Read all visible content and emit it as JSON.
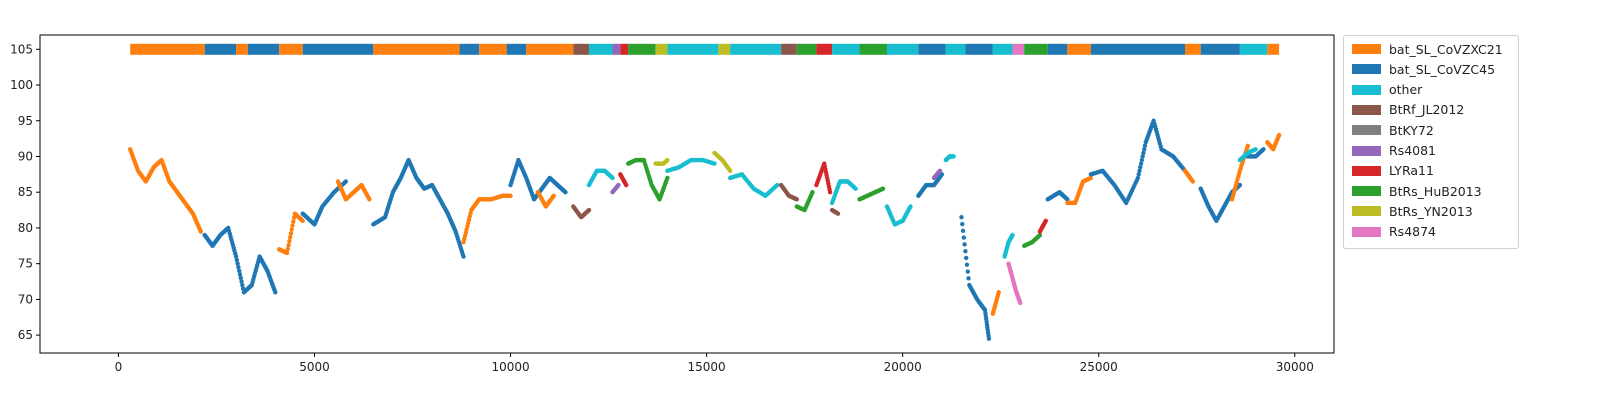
{
  "chart_data": {
    "type": "scatter",
    "title": "",
    "xlabel": "",
    "ylabel": "",
    "xlim": [
      -2000,
      31000
    ],
    "ylim": [
      62.5,
      107
    ],
    "xticks": [
      0,
      5000,
      10000,
      15000,
      20000,
      25000,
      30000
    ],
    "xtick_labels": [
      "0",
      "5000",
      "10000",
      "15000",
      "20000",
      "25000",
      "30000"
    ],
    "yticks": [
      65,
      70,
      75,
      80,
      85,
      90,
      95,
      100,
      105
    ],
    "ytick_labels": [
      "65",
      "70",
      "75",
      "80",
      "85",
      "90",
      "95",
      "100",
      "105"
    ],
    "grid": false,
    "legend_placement": "outside-top-right",
    "colors": {
      "bat_SL_CoVZXC21": "#ff7f0e",
      "bat_SL_CoVZC45": "#1f77b4",
      "other": "#17becf",
      "BtRf_JL2012": "#8c564b",
      "BtKY72": "#7f7f7f",
      "Rs4081": "#9467bd",
      "LYRa11": "#d62728",
      "BtRs_HuB2013": "#2ca02c",
      "BtRs_YN2013": "#bcbd22",
      "Rs4874": "#e377c2"
    },
    "legend": [
      "bat_SL_CoVZXC21",
      "bat_SL_CoVZC45",
      "other",
      "BtRf_JL2012",
      "BtKY72",
      "Rs4081",
      "LYRa11",
      "BtRs_HuB2013",
      "BtRs_YN2013",
      "Rs4874"
    ],
    "band_y": 105,
    "band_segments": [
      [
        300,
        2200,
        "bat_SL_CoVZXC21"
      ],
      [
        2200,
        3000,
        "bat_SL_CoVZC45"
      ],
      [
        3000,
        3300,
        "bat_SL_CoVZXC21"
      ],
      [
        3300,
        4100,
        "bat_SL_CoVZC45"
      ],
      [
        4100,
        4700,
        "bat_SL_CoVZXC21"
      ],
      [
        4700,
        6500,
        "bat_SL_CoVZC45"
      ],
      [
        6500,
        8700,
        "bat_SL_CoVZXC21"
      ],
      [
        8700,
        9200,
        "bat_SL_CoVZC45"
      ],
      [
        9200,
        9900,
        "bat_SL_CoVZXC21"
      ],
      [
        9900,
        10400,
        "bat_SL_CoVZC45"
      ],
      [
        10400,
        11600,
        "bat_SL_CoVZXC21"
      ],
      [
        11600,
        12000,
        "BtRf_JL2012"
      ],
      [
        12000,
        12600,
        "other"
      ],
      [
        12600,
        12800,
        "Rs4081"
      ],
      [
        12800,
        13000,
        "LYRa11"
      ],
      [
        13000,
        13700,
        "BtRs_HuB2013"
      ],
      [
        13700,
        14000,
        "BtRs_YN2013"
      ],
      [
        14000,
        15300,
        "other"
      ],
      [
        15300,
        15600,
        "BtRs_YN2013"
      ],
      [
        15600,
        16900,
        "other"
      ],
      [
        16900,
        17300,
        "BtRf_JL2012"
      ],
      [
        17300,
        17800,
        "BtRs_HuB2013"
      ],
      [
        17800,
        18200,
        "LYRa11"
      ],
      [
        18200,
        18900,
        "other"
      ],
      [
        18900,
        19600,
        "BtRs_HuB2013"
      ],
      [
        19600,
        20400,
        "other"
      ],
      [
        20400,
        21100,
        "bat_SL_CoVZC45"
      ],
      [
        21100,
        21600,
        "other"
      ],
      [
        21600,
        22300,
        "bat_SL_CoVZC45"
      ],
      [
        22300,
        22800,
        "other"
      ],
      [
        22800,
        23100,
        "Rs4874"
      ],
      [
        23100,
        23700,
        "BtRs_HuB2013"
      ],
      [
        23700,
        24200,
        "bat_SL_CoVZC45"
      ],
      [
        24200,
        24800,
        "bat_SL_CoVZXC21"
      ],
      [
        24800,
        27200,
        "bat_SL_CoVZC45"
      ],
      [
        27200,
        27600,
        "bat_SL_CoVZXC21"
      ],
      [
        27600,
        28600,
        "bat_SL_CoVZC45"
      ],
      [
        28600,
        29300,
        "other"
      ],
      [
        29300,
        29600,
        "bat_SL_CoVZXC21"
      ]
    ],
    "series": [
      {
        "name": "bat_SL_CoVZXC21",
        "x": [
          300,
          500,
          700,
          900,
          1100,
          1300,
          1500,
          1700,
          1900,
          2100
        ],
        "y": [
          91,
          88,
          86.5,
          88.5,
          89.5,
          86.5,
          85,
          83.5,
          82,
          79.5
        ]
      },
      {
        "name": "bat_SL_CoVZC45",
        "x": [
          2200,
          2400,
          2600,
          2800,
          3000,
          3200,
          3400,
          3600,
          3800,
          4000
        ],
        "y": [
          79,
          77.5,
          79,
          80,
          76,
          71,
          72,
          76,
          74,
          71
        ]
      },
      {
        "name": "bat_SL_CoVZXC21",
        "x": [
          4100,
          4300,
          4500,
          4700
        ],
        "y": [
          77,
          76.5,
          82,
          81
        ]
      },
      {
        "name": "bat_SL_CoVZC45",
        "x": [
          4700,
          5000,
          5200,
          5500,
          5800
        ],
        "y": [
          82,
          80.5,
          83,
          85,
          86.5
        ]
      },
      {
        "name": "bat_SL_CoVZXC21",
        "x": [
          5600,
          5800,
          6000,
          6200,
          6400
        ],
        "y": [
          86.5,
          84,
          85,
          86,
          84
        ]
      },
      {
        "name": "bat_SL_CoVZC45",
        "x": [
          6500,
          6800,
          7000,
          7200,
          7400,
          7600,
          7800,
          8000,
          8200,
          8400,
          8600,
          8800
        ],
        "y": [
          80.5,
          81.5,
          85,
          87,
          89.5,
          87,
          85.5,
          86,
          84,
          82,
          79.5,
          76
        ]
      },
      {
        "name": "bat_SL_CoVZXC21",
        "x": [
          8800,
          9000,
          9200,
          9500,
          9800,
          10000
        ],
        "y": [
          78,
          82.5,
          84,
          84,
          84.5,
          84.5
        ]
      },
      {
        "name": "bat_SL_CoVZC45",
        "x": [
          10000,
          10200,
          10400,
          10600,
          10800,
          11000,
          11200,
          11400
        ],
        "y": [
          86,
          89.5,
          87,
          84,
          85.5,
          87,
          86,
          85
        ]
      },
      {
        "name": "bat_SL_CoVZXC21",
        "x": [
          10700,
          10900,
          11100
        ],
        "y": [
          85,
          83,
          84.5
        ]
      },
      {
        "name": "BtRf_JL2012",
        "x": [
          11600,
          11800,
          12000
        ],
        "y": [
          83,
          81.5,
          82.5
        ]
      },
      {
        "name": "other",
        "x": [
          12000,
          12200,
          12400,
          12600
        ],
        "y": [
          86,
          88,
          88,
          87
        ]
      },
      {
        "name": "Rs4081",
        "x": [
          12600,
          12750
        ],
        "y": [
          85,
          86
        ]
      },
      {
        "name": "LYRa11",
        "x": [
          12800,
          12950
        ],
        "y": [
          87.5,
          86
        ]
      },
      {
        "name": "BtRs_HuB2013",
        "x": [
          13000,
          13200,
          13400,
          13600,
          13800,
          14000
        ],
        "y": [
          89,
          89.5,
          89.5,
          86,
          84,
          87
        ]
      },
      {
        "name": "BtRs_YN2013",
        "x": [
          13700,
          13900,
          14000
        ],
        "y": [
          89,
          89,
          89.5
        ]
      },
      {
        "name": "other",
        "x": [
          14000,
          14300,
          14600,
          14900,
          15200
        ],
        "y": [
          88,
          88.5,
          89.5,
          89.5,
          89
        ]
      },
      {
        "name": "BtRs_YN2013",
        "x": [
          15200,
          15400,
          15600
        ],
        "y": [
          90.5,
          89.5,
          88
        ]
      },
      {
        "name": "other",
        "x": [
          15600,
          15900,
          16200,
          16500,
          16800
        ],
        "y": [
          87,
          87.5,
          85.5,
          84.5,
          86
        ]
      },
      {
        "name": "BtRf_JL2012",
        "x": [
          16900,
          17100,
          17300
        ],
        "y": [
          86,
          84.5,
          84
        ]
      },
      {
        "name": "BtRs_HuB2013",
        "x": [
          17300,
          17500,
          17700
        ],
        "y": [
          83,
          82.5,
          85
        ]
      },
      {
        "name": "LYRa11",
        "x": [
          17800,
          18000,
          18150
        ],
        "y": [
          86,
          89,
          85
        ]
      },
      {
        "name": "other",
        "x": [
          18200,
          18400,
          18600,
          18800
        ],
        "y": [
          83.5,
          86.5,
          86.5,
          85.5
        ]
      },
      {
        "name": "BtRf_JL2012",
        "x": [
          18200,
          18350
        ],
        "y": [
          82.5,
          82
        ]
      },
      {
        "name": "BtRs_HuB2013",
        "x": [
          18900,
          19100,
          19300,
          19500
        ],
        "y": [
          84,
          84.5,
          85,
          85.5
        ]
      },
      {
        "name": "other",
        "x": [
          19600,
          19800,
          20000,
          20200
        ],
        "y": [
          83,
          80.5,
          81,
          83
        ]
      },
      {
        "name": "bat_SL_CoVZC45",
        "x": [
          20400,
          20600,
          20800,
          21000
        ],
        "y": [
          84.5,
          86,
          86,
          87.5
        ]
      },
      {
        "name": "Rs4081",
        "x": [
          20800,
          20950
        ],
        "y": [
          87,
          88
        ]
      },
      {
        "name": "other",
        "x": [
          21100,
          21200,
          21300
        ],
        "y": [
          89.5,
          90,
          90
        ]
      },
      {
        "name": "bat_SL_CoVZC45",
        "x": [
          21500,
          21700,
          21900,
          22100,
          22200
        ],
        "y": [
          81.5,
          72,
          70,
          68.5,
          64.5
        ]
      },
      {
        "name": "bat_SL_CoVZXC21",
        "x": [
          22300,
          22450
        ],
        "y": [
          68,
          71
        ]
      },
      {
        "name": "other",
        "x": [
          22600,
          22700,
          22800
        ],
        "y": [
          76,
          78,
          79
        ]
      },
      {
        "name": "Rs4874",
        "x": [
          22700,
          22800,
          22900,
          23000
        ],
        "y": [
          75,
          73,
          71,
          69.5
        ]
      },
      {
        "name": "BtRs_HuB2013",
        "x": [
          23100,
          23300,
          23500
        ],
        "y": [
          77.5,
          78,
          79
        ]
      },
      {
        "name": "LYRa11",
        "x": [
          23500,
          23650
        ],
        "y": [
          79.5,
          81
        ]
      },
      {
        "name": "bat_SL_CoVZC45",
        "x": [
          23700,
          24000,
          24200
        ],
        "y": [
          84,
          85,
          84
        ]
      },
      {
        "name": "bat_SL_CoVZXC21",
        "x": [
          24200,
          24400,
          24600,
          24800
        ],
        "y": [
          83.5,
          83.5,
          86.5,
          87
        ]
      },
      {
        "name": "bat_SL_CoVZC45",
        "x": [
          24800,
          25100,
          25400,
          25700,
          26000,
          26200,
          26400,
          26600,
          26900,
          27200
        ],
        "y": [
          87.5,
          88,
          86,
          83.5,
          87,
          92,
          95,
          91,
          90,
          88
        ]
      },
      {
        "name": "bat_SL_CoVZXC21",
        "x": [
          27200,
          27400
        ],
        "y": [
          88,
          86.5
        ]
      },
      {
        "name": "bat_SL_CoVZC45",
        "x": [
          27600,
          27800,
          28000,
          28200,
          28400,
          28600
        ],
        "y": [
          85.5,
          83,
          81,
          83,
          85,
          86
        ]
      },
      {
        "name": "bat_SL_CoVZXC21",
        "x": [
          28400,
          28600,
          28800
        ],
        "y": [
          84,
          88,
          91.5
        ]
      },
      {
        "name": "bat_SL_CoVZC45",
        "x": [
          28800,
          29000,
          29200
        ],
        "y": [
          90,
          90,
          91
        ]
      },
      {
        "name": "other",
        "x": [
          28600,
          28800,
          29000
        ],
        "y": [
          89.5,
          90.5,
          91
        ]
      },
      {
        "name": "bat_SL_CoVZXC21",
        "x": [
          29300,
          29450,
          29600
        ],
        "y": [
          92,
          91,
          93
        ]
      }
    ]
  }
}
